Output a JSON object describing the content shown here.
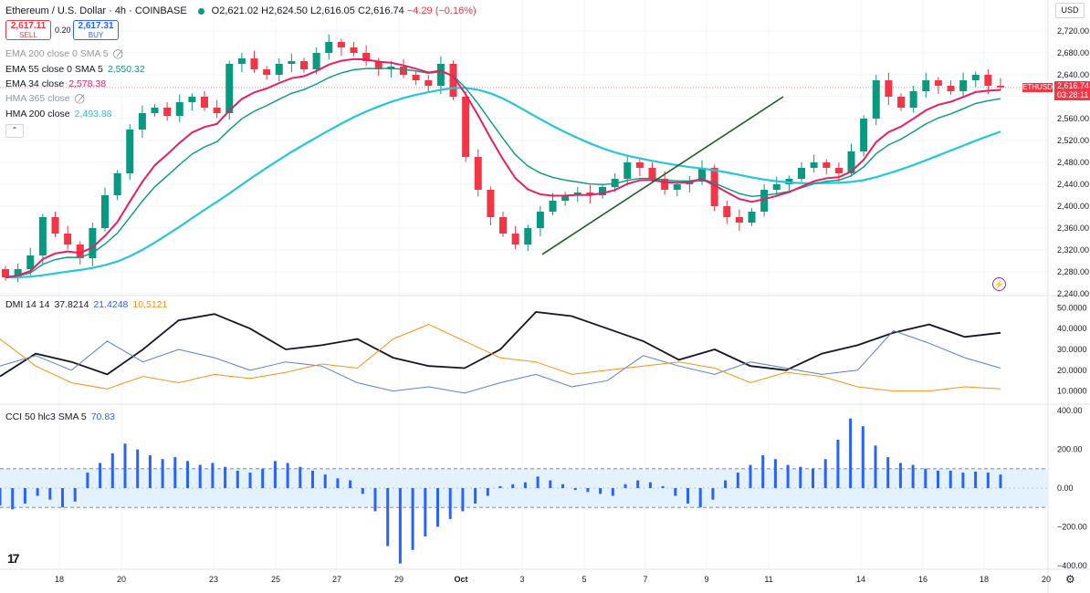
{
  "header": {
    "symbol": "Ethereum / U.S. Dollar · 4h · COINBASE",
    "open_label": "O",
    "open": "2,621.02",
    "high_label": "H",
    "high": "2,624.50",
    "low_label": "L",
    "low": "2,616.05",
    "close_label": "C",
    "close": "2,616.74",
    "change": "−4.29 (−0.16%)",
    "status_color": "#089981"
  },
  "trade": {
    "sell_price": "2,617.11",
    "sell_label": "SELL",
    "spread": "0.20",
    "buy_price": "2,617.31",
    "buy_label": "BUY"
  },
  "legend": [
    {
      "name": "EMA 200 close 0 SMA 5",
      "value": "",
      "color": "#9598a1",
      "hidden": true
    },
    {
      "name": "EMA 55 close 0 SMA 5",
      "value": "2,550.32",
      "color": "#089981",
      "hidden": false
    },
    {
      "name": "EMA 34 close",
      "value": "2,578.38",
      "color": "#e91e63",
      "hidden": false
    },
    {
      "name": "HMA 365 close",
      "value": "",
      "color": "#9598a1",
      "hidden": true
    },
    {
      "name": "HMA 200 close",
      "value": "2,493.88",
      "color": "#26c6da",
      "hidden": false
    }
  ],
  "currency": "USD",
  "price_axis": [
    "2,720.00",
    "2,680.00",
    "2,640.00",
    "2,600.00",
    "2,560.00",
    "2,520.00",
    "2,480.00",
    "2,440.00",
    "2,400.00",
    "2,360.00",
    "2,320.00",
    "2,280.00",
    "2,240.00"
  ],
  "price_tag": {
    "symbol": "ETHUSD",
    "price": "2,616.74",
    "countdown": "03:28:11"
  },
  "dmi": {
    "label": "DMI 14 14",
    "adx": "37.8214",
    "plus_di": "21.4248",
    "minus_di": "10.5121",
    "axis": [
      "50.0000",
      "40.0000",
      "30.0000",
      "20.0000",
      "10.0000"
    ],
    "colors": {
      "adx": "#131722",
      "plus": "#5b7fd6",
      "minus": "#f7931a"
    }
  },
  "cci": {
    "label": "CCI 50 hlc3 SMA 5",
    "value": "70.83",
    "axis": [
      "400.00",
      "200.00",
      "0.00",
      "−200.00",
      "−400.00"
    ],
    "color": "#2962ff"
  },
  "time_axis": [
    "18",
    "20",
    "23",
    "25",
    "27",
    "29",
    "Oct",
    "3",
    "5",
    "7",
    "9",
    "11",
    "14",
    "16",
    "18",
    "20"
  ],
  "colors": {
    "up": "#089981",
    "down": "#f23645",
    "ema55": "#089981",
    "ema34": "#e91e63",
    "hma200": "#26c6da",
    "trendline": "#1b5e20"
  },
  "chart_data": [
    {
      "type": "candlestick",
      "title": "Ethereum / U.S. Dollar · 4h · COINBASE",
      "x_ticks": [
        "18",
        "20",
        "23",
        "25",
        "27",
        "29",
        "Oct",
        "3",
        "5",
        "7",
        "9",
        "11",
        "14",
        "16",
        "18",
        "20"
      ],
      "ylim": [
        2240,
        2740
      ],
      "close_series": [
        2270,
        2285,
        2310,
        2380,
        2350,
        2330,
        2305,
        2360,
        2420,
        2460,
        2540,
        2570,
        2580,
        2565,
        2590,
        2600,
        2580,
        2570,
        2660,
        2670,
        2650,
        2640,
        2660,
        2665,
        2650,
        2680,
        2700,
        2690,
        2680,
        2665,
        2650,
        2655,
        2640,
        2630,
        2620,
        2660,
        2600,
        2490,
        2430,
        2380,
        2350,
        2330,
        2360,
        2390,
        2410,
        2420,
        2425,
        2420,
        2435,
        2450,
        2480,
        2470,
        2450,
        2430,
        2440,
        2445,
        2470,
        2400,
        2380,
        2370,
        2390,
        2430,
        2440,
        2450,
        2470,
        2480,
        2470,
        2460,
        2500,
        2560,
        2630,
        2600,
        2580,
        2610,
        2630,
        2620,
        2610,
        2630,
        2640,
        2620,
        2617
      ],
      "series": [
        {
          "name": "EMA 55 close 0 SMA 5",
          "last": 2550.32
        },
        {
          "name": "EMA 34 close",
          "last": 2578.38
        },
        {
          "name": "HMA 200 close",
          "last": 2493.88
        }
      ],
      "grid": true
    },
    {
      "type": "line",
      "title": "DMI 14 14",
      "ylim": [
        5,
        55
      ],
      "series": [
        {
          "name": "ADX",
          "values": [
            17,
            28,
            24,
            18,
            30,
            44,
            47,
            40,
            30,
            32,
            35,
            26,
            22,
            21,
            30,
            48,
            46,
            40,
            34,
            25,
            30,
            22,
            20,
            28,
            32,
            38,
            42,
            36,
            38
          ],
          "last": 37.8214
        },
        {
          "name": "+DI",
          "values": [
            22,
            27,
            20,
            34,
            24,
            30,
            26,
            20,
            24,
            22,
            14,
            10,
            12,
            9,
            14,
            18,
            12,
            15,
            27,
            22,
            18,
            24,
            21,
            18,
            20,
            39,
            33,
            26,
            21
          ],
          "last": 21.4248
        },
        {
          "name": "−DI",
          "values": [
            35,
            22,
            14,
            11,
            17,
            14,
            18,
            16,
            19,
            23,
            21,
            35,
            42,
            34,
            26,
            24,
            18,
            20,
            22,
            24,
            21,
            14,
            19,
            17,
            12,
            10,
            10,
            12,
            11
          ],
          "last": 10.5121
        }
      ]
    },
    {
      "type": "bar",
      "title": "CCI 50 hlc3 SMA 5",
      "ylim": [
        -400,
        400
      ],
      "values": [
        -90,
        -110,
        -80,
        -40,
        -60,
        -100,
        -70,
        80,
        130,
        180,
        230,
        200,
        170,
        150,
        160,
        140,
        120,
        130,
        110,
        90,
        80,
        100,
        140,
        130,
        110,
        90,
        70,
        50,
        40,
        -30,
        -120,
        -300,
        -390,
        -320,
        -250,
        -200,
        -160,
        -120,
        -80,
        -40,
        10,
        20,
        30,
        60,
        40,
        20,
        -10,
        -20,
        -30,
        -40,
        20,
        40,
        30,
        10,
        -40,
        -80,
        -100,
        -60,
        40,
        80,
        120,
        170,
        150,
        120,
        110,
        100,
        150,
        250,
        360,
        320,
        220,
        160,
        130,
        120,
        100,
        90,
        90,
        80,
        85,
        80,
        70
      ]
    }
  ]
}
